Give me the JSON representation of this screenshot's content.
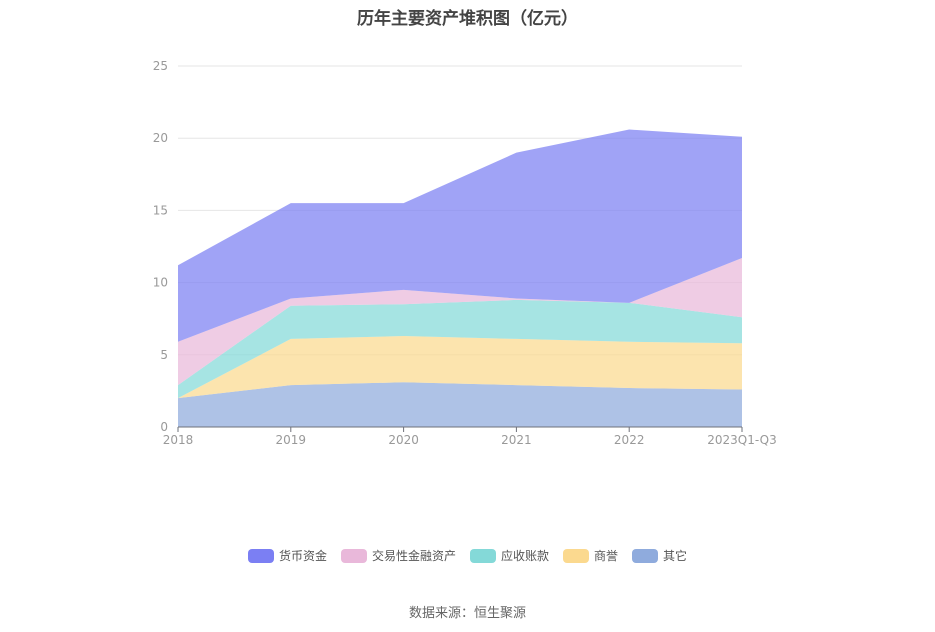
{
  "chart_data": {
    "type": "area",
    "stacked": true,
    "title": "历年主要资产堆积图（亿元）",
    "categories": [
      "2018",
      "2019",
      "2020",
      "2021",
      "2022",
      "2023Q1-Q3"
    ],
    "ylim": [
      0,
      25
    ],
    "yticks": [
      0,
      5,
      10,
      15,
      20,
      25
    ],
    "grid": true,
    "legend_position": "bottom",
    "series": [
      {
        "name": "其它",
        "color": "#8fabdd",
        "values": [
          2.0,
          2.9,
          3.1,
          2.9,
          2.7,
          2.6
        ]
      },
      {
        "name": "商誉",
        "color": "#fbd98f",
        "values": [
          0.0,
          3.2,
          3.2,
          3.2,
          3.2,
          3.2
        ]
      },
      {
        "name": "应收账款",
        "color": "#84d9d8",
        "values": [
          0.9,
          2.3,
          2.2,
          2.7,
          2.7,
          1.8
        ]
      },
      {
        "name": "交易性金融资产",
        "color": "#e9b8da",
        "values": [
          3.0,
          0.5,
          1.0,
          0.1,
          0.0,
          4.1
        ]
      },
      {
        "name": "货币资金",
        "color": "#7b7ff3",
        "values": [
          5.3,
          6.6,
          6.0,
          10.1,
          12.0,
          8.4
        ]
      }
    ]
  },
  "source": "数据来源：恒生聚源"
}
